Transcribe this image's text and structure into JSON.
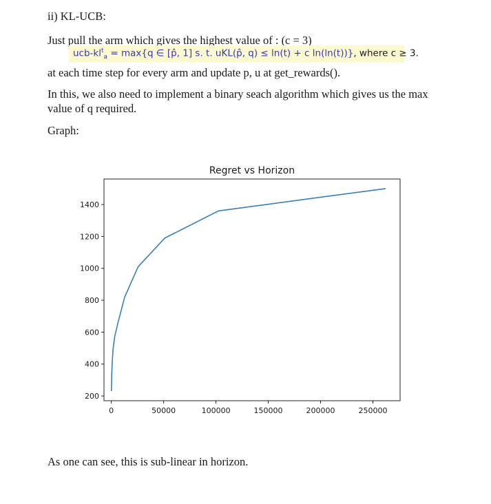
{
  "heading": "ii) KL-UCB:",
  "intro": "Just pull the arm which gives the highest value of : (c = 3)",
  "formula": {
    "lhs": "ucb-kl",
    "sup": "t",
    "sub": "a",
    "body": " = max{q ∈ [p̂",
    "body2": ", 1] s. t. u",
    "body3": "KL(p̂",
    "body4": ", q) ≤ ln(t) + c ln(ln(t))}",
    "tail": ", where c ≥ 3."
  },
  "update_text": "at each time step for every arm and update p, u at get_rewards().",
  "bsearch_line1": "In this, we also need to implement a binary seach algorithm which gives us the max",
  "bsearch_line2": "value of q required.",
  "graph_label": "Graph:",
  "conclusion": "As one can see, this is sub-linear in horizon.",
  "colors": {
    "line": "#3a7fb4",
    "formula_text": "#3b35b8",
    "highlight": "#fbf9cf"
  },
  "chart_data": {
    "type": "line",
    "title": "Regret vs Horizon",
    "xlabel": "",
    "ylabel": "",
    "xlim": [
      -7000,
      276000
    ],
    "ylim": [
      170,
      1560
    ],
    "xticks": [
      0,
      50000,
      100000,
      150000,
      200000,
      250000
    ],
    "xtick_labels": [
      "0",
      "50000",
      "100000",
      "150000",
      "200000",
      "250000"
    ],
    "yticks": [
      200,
      400,
      600,
      800,
      1000,
      1200,
      1400
    ],
    "ytick_labels": [
      "200",
      "400",
      "600",
      "800",
      "1000",
      "1200",
      "1400"
    ],
    "series": [
      {
        "name": "regret",
        "x": [
          100,
          400,
          800,
          1600,
          3200,
          6400,
          12800,
          25600,
          51200,
          102400,
          204800,
          262144
        ],
        "y": [
          230,
          330,
          400,
          490,
          570,
          660,
          820,
          1010,
          1190,
          1360,
          1450,
          1500
        ]
      }
    ]
  }
}
